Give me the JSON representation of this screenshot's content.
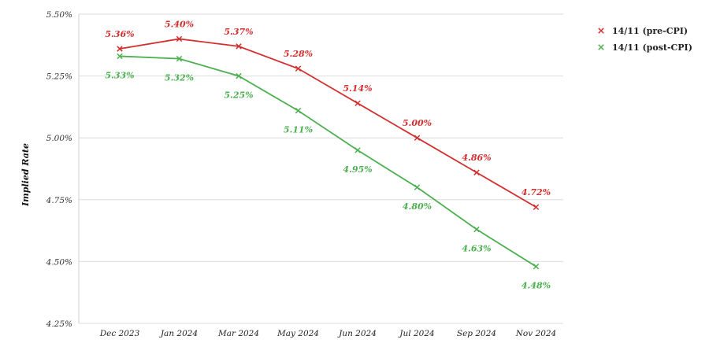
{
  "chart_data": {
    "type": "line",
    "title": "",
    "xlabel": "",
    "ylabel": "Implied Rate",
    "categories": [
      "Dec 2023",
      "Jan 2024",
      "Mar 2024",
      "May 2024",
      "Jun 2024",
      "Jul 2024",
      "Sep 2024",
      "Nov 2024"
    ],
    "ylim": [
      4.25,
      5.5
    ],
    "yticks": [
      "4.25%",
      "4.50%",
      "4.75%",
      "5.00%",
      "5.25%",
      "5.50%"
    ],
    "ytick_values": [
      4.25,
      4.5,
      4.75,
      5.0,
      5.25,
      5.5
    ],
    "grid": "horizontal",
    "legend_position": "top-right",
    "series": [
      {
        "name": "14/11 (pre-CPI)",
        "color": "#d32f2f",
        "values": [
          5.36,
          5.4,
          5.37,
          5.28,
          5.14,
          5.0,
          4.86,
          4.72
        ],
        "labels": [
          "5.36%",
          "5.40%",
          "5.37%",
          "5.28%",
          "5.14%",
          "5.00%",
          "4.86%",
          "4.72%"
        ],
        "label_position": "above"
      },
      {
        "name": "14/11 (post-CPI)",
        "color": "#4caf50",
        "values": [
          5.33,
          5.32,
          5.25,
          5.11,
          4.95,
          4.8,
          4.63,
          4.48
        ],
        "labels": [
          "5.33%",
          "5.32%",
          "5.25%",
          "5.11%",
          "4.95%",
          "4.80%",
          "4.63%",
          "4.48%"
        ],
        "label_position": "below"
      }
    ]
  }
}
